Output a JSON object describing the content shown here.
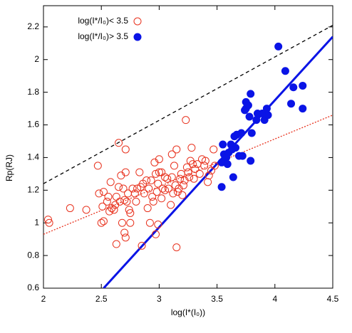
{
  "chart_data": {
    "type": "scatter",
    "xlabel": "log(I*(I₀))",
    "ylabel": "Rp(RJ)",
    "xlim": [
      2,
      4.5
    ],
    "ylim": [
      0.6,
      2.33
    ],
    "xticks": [
      2,
      2.5,
      3,
      3.5,
      4,
      4.5
    ],
    "yticks": [
      0.6,
      0.8,
      1,
      1.2,
      1.4,
      1.6,
      1.8,
      2,
      2.2
    ],
    "series": [
      {
        "name": "log(I*/I₀)< 3.5",
        "color": "#e8321e",
        "marker": "open",
        "x": [
          2.04,
          2.05,
          2.23,
          2.37,
          2.47,
          2.48,
          2.5,
          2.51,
          2.52,
          2.52,
          2.55,
          2.56,
          2.57,
          2.58,
          2.59,
          2.61,
          2.62,
          2.63,
          2.63,
          2.65,
          2.65,
          2.66,
          2.67,
          2.68,
          2.69,
          2.7,
          2.7,
          2.71,
          2.71,
          2.71,
          2.72,
          2.73,
          2.74,
          2.75,
          2.75,
          2.77,
          2.79,
          2.8,
          2.81,
          2.83,
          2.84,
          2.85,
          2.86,
          2.87,
          2.89,
          2.9,
          2.91,
          2.92,
          2.93,
          2.94,
          2.95,
          2.96,
          2.97,
          2.97,
          2.98,
          2.99,
          2.99,
          3,
          3,
          3.02,
          3.02,
          3.03,
          3.05,
          3.05,
          3.07,
          3.08,
          3.1,
          3.11,
          3.11,
          3.12,
          3.13,
          3.14,
          3.15,
          3.15,
          3.16,
          3.17,
          3.18,
          3.19,
          3.2,
          3.21,
          3.22,
          3.23,
          3.24,
          3.25,
          3.26,
          3.27,
          3.28,
          3.29,
          3.3,
          3.31,
          3.33,
          3.35,
          3.37,
          3.39,
          3.4,
          3.42,
          3.43,
          3.45,
          3.47,
          3.48
        ],
        "values": [
          1.02,
          1,
          1.09,
          1.08,
          1.35,
          1.18,
          1,
          1.1,
          1.19,
          1.01,
          1.13,
          1.16,
          1.07,
          1.25,
          1.09,
          1.08,
          1.11,
          0.87,
          1.16,
          1.22,
          1.49,
          1.13,
          1.29,
          1,
          1.21,
          1.14,
          0.94,
          0.91,
          1.45,
          1.31,
          1.13,
          1.18,
          1.08,
          1.06,
          1,
          1.21,
          1.18,
          1.13,
          1.21,
          1.31,
          1.22,
          0.86,
          1.24,
          1.18,
          1.26,
          1.09,
          1.21,
          1,
          1.26,
          1.16,
          1.13,
          1.37,
          1.3,
          0.93,
          1.19,
          0.99,
          1.24,
          1.31,
          1.39,
          1.15,
          1.31,
          1.21,
          1.2,
          1.28,
          1.27,
          1.21,
          1.11,
          1.42,
          1.28,
          1.18,
          1.35,
          1.23,
          0.85,
          1.45,
          1.19,
          1.21,
          1.27,
          1.3,
          1.17,
          1.23,
          1.26,
          1.63,
          1.34,
          1.31,
          1.28,
          1.38,
          1.46,
          1.36,
          1.27,
          1.33,
          1.36,
          1.3,
          1.39,
          1.35,
          1.38,
          1.25,
          1.29,
          1.32,
          1.45,
          1.35
        ]
      },
      {
        "name": "log(I*/I₀)> 3.5",
        "color": "#0a14e6",
        "marker": "filled",
        "x": [
          3.54,
          3.54,
          3.55,
          3.56,
          3.58,
          3.59,
          3.6,
          3.62,
          3.63,
          3.64,
          3.65,
          3.66,
          3.67,
          3.69,
          3.71,
          3.72,
          3.74,
          3.75,
          3.75,
          3.77,
          3.78,
          3.79,
          3.79,
          3.8,
          3.84,
          3.85,
          3.89,
          3.91,
          3.93,
          3.94,
          4.03,
          4.09,
          4.14,
          4.16,
          4.24,
          4.24
        ],
        "values": [
          1.22,
          1.37,
          1.48,
          1.42,
          1.4,
          1.36,
          1.43,
          1.48,
          1.45,
          1.28,
          1.53,
          1.46,
          1.54,
          1.41,
          1.55,
          1.41,
          1.69,
          1.74,
          1.7,
          1.72,
          1.65,
          1.38,
          1.79,
          1.55,
          1.63,
          1.67,
          1.67,
          1.63,
          1.7,
          1.66,
          2.08,
          1.93,
          1.73,
          1.83,
          1.84,
          1.7
        ]
      }
    ],
    "lines": [
      {
        "color": "#000000",
        "style": "dashed",
        "x": [
          2,
          4.5
        ],
        "values": [
          1.24,
          2.21
        ]
      },
      {
        "color": "#e8321e",
        "style": "dotted",
        "x": [
          2,
          4.5
        ],
        "values": [
          0.93,
          1.66
        ]
      },
      {
        "color": "#0a14e6",
        "style": "solid",
        "x": [
          2.52,
          4.5
        ],
        "values": [
          0.6,
          2.14
        ]
      }
    ]
  }
}
